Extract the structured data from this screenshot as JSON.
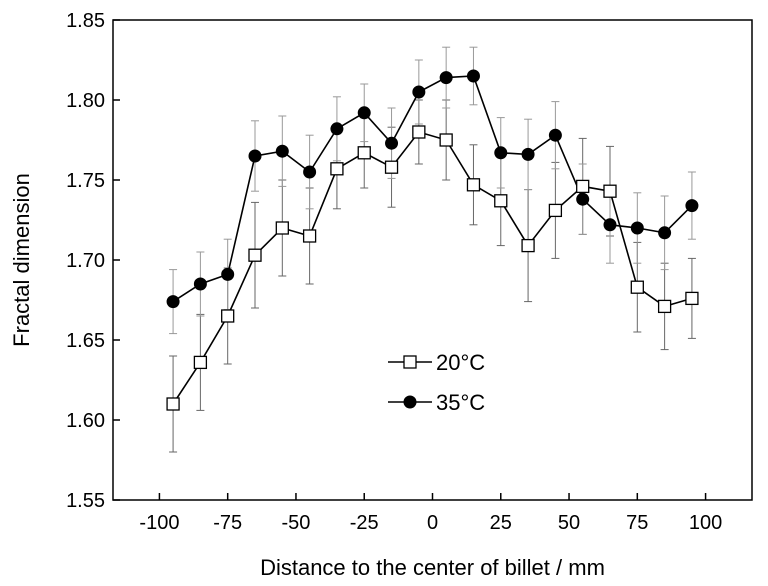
{
  "chart_data": {
    "type": "scatter",
    "title": "",
    "xlabel": "Distance to the center of billet / mm",
    "ylabel": "Fractal dimension",
    "xlim": [
      -117,
      117
    ],
    "ylim": [
      1.55,
      1.85
    ],
    "xticks": [
      -100,
      -75,
      -50,
      -25,
      0,
      25,
      50,
      75,
      100
    ],
    "xtick_labels": [
      "-100",
      "-75",
      "-50",
      "-25",
      "0",
      "25",
      "50",
      "75",
      "100"
    ],
    "yticks": [
      1.55,
      1.6,
      1.65,
      1.7,
      1.75,
      1.8,
      1.85
    ],
    "ytick_labels": [
      "1.55",
      "1.60",
      "1.65",
      "1.70",
      "1.75",
      "1.80",
      "1.85"
    ],
    "grid": false,
    "legend_position": "center-left",
    "x": [
      -95,
      -85,
      -75,
      -65,
      -55,
      -45,
      -35,
      -25,
      -15,
      -5,
      5,
      15,
      25,
      35,
      45,
      55,
      65,
      75,
      85,
      95
    ],
    "series": [
      {
        "name": "20°C",
        "marker": "open-square",
        "color": "#000000",
        "values": [
          1.61,
          1.636,
          1.665,
          1.703,
          1.72,
          1.715,
          1.757,
          1.767,
          1.758,
          1.78,
          1.775,
          1.747,
          1.737,
          1.709,
          1.731,
          1.746,
          1.743,
          1.683,
          1.671,
          1.676
        ],
        "errors": [
          0.03,
          0.03,
          0.03,
          0.033,
          0.03,
          0.03,
          0.025,
          0.022,
          0.025,
          0.02,
          0.025,
          0.025,
          0.028,
          0.035,
          0.03,
          0.03,
          0.028,
          0.028,
          0.027,
          0.025
        ]
      },
      {
        "name": "35°C",
        "marker": "filled-circle",
        "color": "#000000",
        "values": [
          1.674,
          1.685,
          1.691,
          1.765,
          1.768,
          1.755,
          1.782,
          1.792,
          1.773,
          1.805,
          1.814,
          1.815,
          1.767,
          1.766,
          1.778,
          1.738,
          1.722,
          1.72,
          1.717,
          1.734
        ],
        "errors": [
          0.02,
          0.02,
          0.022,
          0.022,
          0.022,
          0.023,
          0.02,
          0.018,
          0.022,
          0.02,
          0.019,
          0.018,
          0.022,
          0.022,
          0.021,
          0.022,
          0.024,
          0.022,
          0.023,
          0.021
        ]
      }
    ]
  }
}
